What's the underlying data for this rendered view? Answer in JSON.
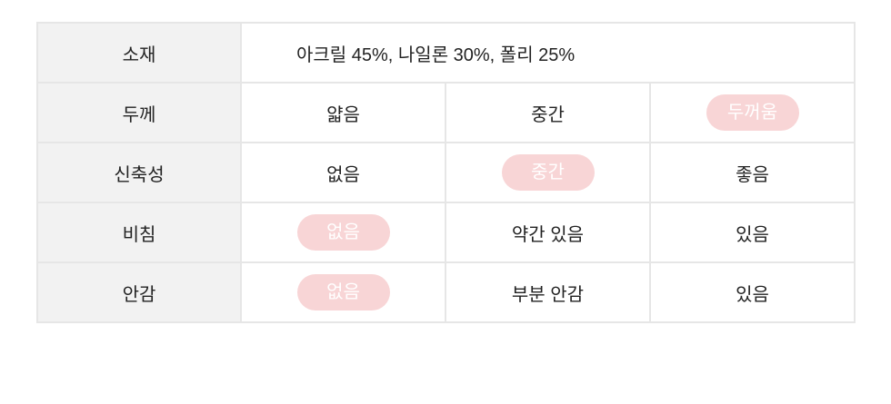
{
  "table": {
    "rows": [
      {
        "label": "소재",
        "value": "아크릴 45%, 나일론 30%, 폴리 25%"
      },
      {
        "label": "두께",
        "options": [
          "얇음",
          "중간",
          "두꺼움"
        ],
        "selected": 2
      },
      {
        "label": "신축성",
        "options": [
          "없음",
          "중간",
          "좋음"
        ],
        "selected": 1
      },
      {
        "label": "비침",
        "options": [
          "없음",
          "약간 있음",
          "있음"
        ],
        "selected": 0
      },
      {
        "label": "안감",
        "options": [
          "없음",
          "부분 안감",
          "있음"
        ],
        "selected": 0
      }
    ],
    "highlight_color": "#f8d5d6"
  }
}
